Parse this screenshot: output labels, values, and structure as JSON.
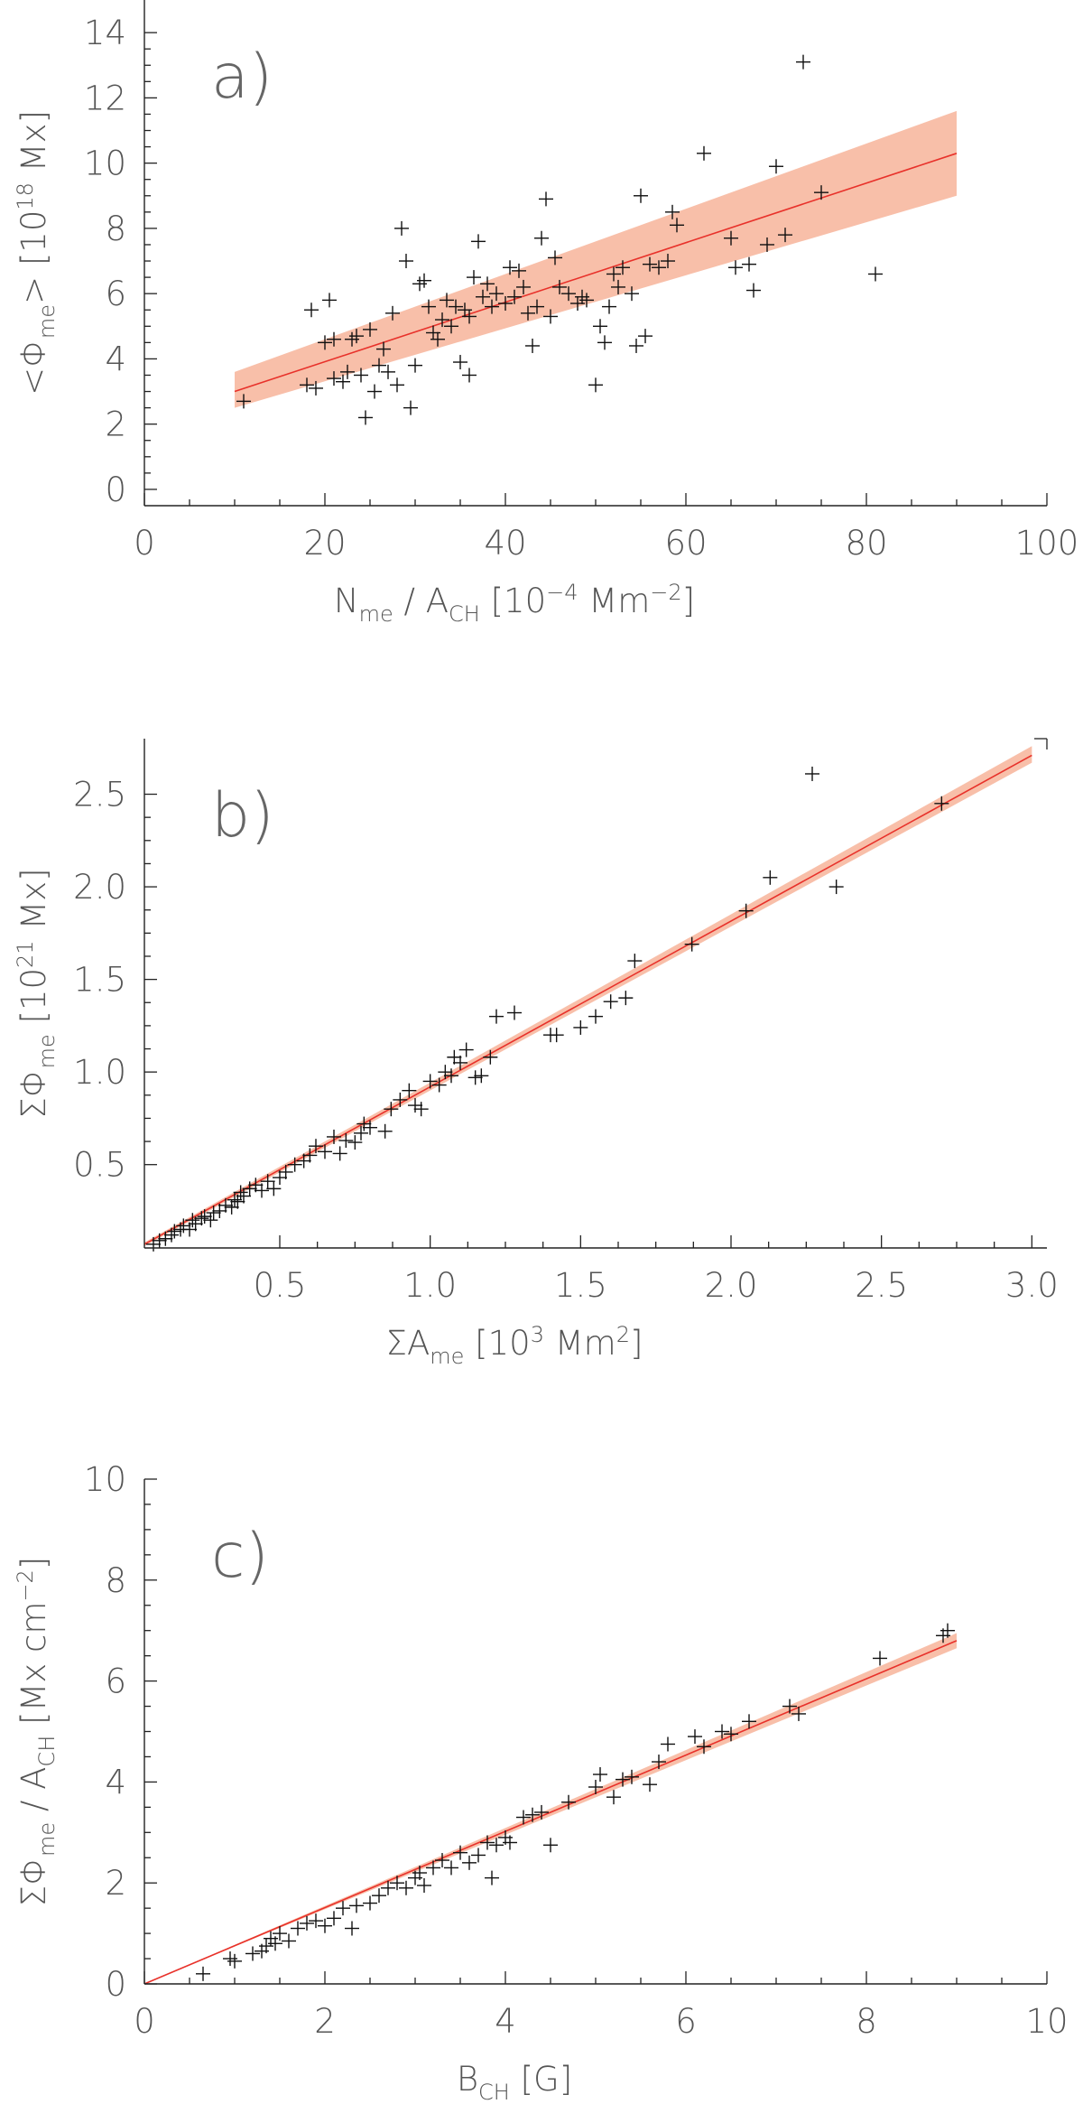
{
  "chart_data": [
    {
      "id": "a",
      "type": "scatter",
      "panel_label": "a)",
      "xlabel": "N_me / A_CH [10^-4 Mm^-2]",
      "ylabel": "<Φ_me> [10^18 Mx]",
      "xlim": [
        0,
        100
      ],
      "ylim": [
        -0.5,
        15
      ],
      "xticks": [
        0,
        20,
        40,
        60,
        80,
        100
      ],
      "yticks": [
        0,
        2,
        4,
        6,
        8,
        10,
        12,
        14
      ],
      "fit": {
        "x": [
          10,
          90
        ],
        "y": [
          3.0,
          10.3
        ]
      },
      "band": {
        "x": [
          10,
          90
        ],
        "lower": [
          2.5,
          9.0
        ],
        "upper": [
          3.6,
          11.6
        ]
      },
      "points": [
        [
          11,
          2.7
        ],
        [
          18,
          3.2
        ],
        [
          18.5,
          5.5
        ],
        [
          19,
          3.1
        ],
        [
          20,
          4.5
        ],
        [
          20.5,
          5.8
        ],
        [
          21,
          3.4
        ],
        [
          21,
          4.6
        ],
        [
          22,
          3.3
        ],
        [
          22.5,
          3.6
        ],
        [
          23,
          4.6
        ],
        [
          23.5,
          4.7
        ],
        [
          24,
          3.5
        ],
        [
          24.5,
          2.2
        ],
        [
          25,
          4.9
        ],
        [
          25.5,
          3.0
        ],
        [
          26,
          3.8
        ],
        [
          26.5,
          4.3
        ],
        [
          27,
          3.6
        ],
        [
          27.5,
          5.4
        ],
        [
          28,
          3.2
        ],
        [
          28.5,
          8.0
        ],
        [
          29,
          7.0
        ],
        [
          29.5,
          2.5
        ],
        [
          30,
          3.8
        ],
        [
          30.5,
          6.3
        ],
        [
          31,
          6.4
        ],
        [
          31.5,
          5.6
        ],
        [
          32,
          4.8
        ],
        [
          32.5,
          4.6
        ],
        [
          33,
          5.2
        ],
        [
          33.5,
          5.8
        ],
        [
          34,
          5.0
        ],
        [
          34.5,
          5.6
        ],
        [
          35,
          3.9
        ],
        [
          35.5,
          5.5
        ],
        [
          36,
          3.5
        ],
        [
          36,
          5.3
        ],
        [
          36.5,
          6.5
        ],
        [
          37,
          7.6
        ],
        [
          37.5,
          5.9
        ],
        [
          38,
          6.3
        ],
        [
          38.5,
          5.6
        ],
        [
          39,
          6.0
        ],
        [
          40,
          5.7
        ],
        [
          40.5,
          6.8
        ],
        [
          41,
          5.9
        ],
        [
          41.5,
          6.7
        ],
        [
          42,
          6.2
        ],
        [
          42.5,
          5.4
        ],
        [
          43,
          4.4
        ],
        [
          43.5,
          5.6
        ],
        [
          44,
          7.7
        ],
        [
          44.5,
          8.9
        ],
        [
          45,
          5.3
        ],
        [
          45.5,
          7.1
        ],
        [
          46,
          6.2
        ],
        [
          47,
          6.0
        ],
        [
          48,
          5.7
        ],
        [
          48.5,
          5.9
        ],
        [
          49,
          5.8
        ],
        [
          50,
          3.2
        ],
        [
          50.5,
          5.0
        ],
        [
          51,
          4.5
        ],
        [
          51.5,
          5.6
        ],
        [
          52,
          6.6
        ],
        [
          52.5,
          6.2
        ],
        [
          53,
          6.8
        ],
        [
          54,
          6.0
        ],
        [
          54.5,
          4.4
        ],
        [
          55,
          9.0
        ],
        [
          55.5,
          4.7
        ],
        [
          56,
          6.9
        ],
        [
          57,
          6.8
        ],
        [
          58,
          7.0
        ],
        [
          58.5,
          8.5
        ],
        [
          59,
          8.1
        ],
        [
          62,
          10.3
        ],
        [
          65,
          7.7
        ],
        [
          65.5,
          6.8
        ],
        [
          67,
          6.9
        ],
        [
          67.5,
          6.1
        ],
        [
          69,
          7.5
        ],
        [
          70,
          9.9
        ],
        [
          71,
          7.8
        ],
        [
          73,
          13.1
        ],
        [
          75,
          9.1
        ],
        [
          81,
          6.6
        ]
      ]
    },
    {
      "id": "b",
      "type": "scatter",
      "panel_label": "b)",
      "xlabel": "ΣA_me [10^3 Mm^2]",
      "ylabel": "ΣΦ_me [10^21 Mx]",
      "xlim": [
        0.05,
        3.05
      ],
      "ylim": [
        0.05,
        2.8
      ],
      "xticks": [
        0.5,
        1.0,
        1.5,
        2.0,
        2.5,
        3.0
      ],
      "xticklabels": [
        "0.5",
        "1.0",
        "1.5",
        "2.0",
        "2.5",
        "3.0"
      ],
      "yticks": [
        0.5,
        1.0,
        1.5,
        2.0,
        2.5
      ],
      "yticklabels": [
        "0.5",
        "1.0",
        "1.5",
        "2.0",
        "2.5"
      ],
      "fit": {
        "x": [
          0.05,
          3.0
        ],
        "y": [
          0.07,
          2.71
        ]
      },
      "band": {
        "x": [
          0.05,
          3.0
        ],
        "lower": [
          0.06,
          2.67
        ],
        "upper": [
          0.08,
          2.76
        ]
      },
      "points": [
        [
          0.08,
          0.07
        ],
        [
          0.1,
          0.09
        ],
        [
          0.12,
          0.1
        ],
        [
          0.14,
          0.12
        ],
        [
          0.15,
          0.14
        ],
        [
          0.17,
          0.15
        ],
        [
          0.18,
          0.17
        ],
        [
          0.2,
          0.15
        ],
        [
          0.21,
          0.2
        ],
        [
          0.22,
          0.18
        ],
        [
          0.24,
          0.21
        ],
        [
          0.25,
          0.22
        ],
        [
          0.27,
          0.2
        ],
        [
          0.28,
          0.24
        ],
        [
          0.3,
          0.25
        ],
        [
          0.32,
          0.28
        ],
        [
          0.34,
          0.27
        ],
        [
          0.35,
          0.31
        ],
        [
          0.36,
          0.3
        ],
        [
          0.37,
          0.35
        ],
        [
          0.38,
          0.33
        ],
        [
          0.4,
          0.37
        ],
        [
          0.42,
          0.39
        ],
        [
          0.44,
          0.36
        ],
        [
          0.46,
          0.41
        ],
        [
          0.48,
          0.37
        ],
        [
          0.5,
          0.43
        ],
        [
          0.52,
          0.46
        ],
        [
          0.55,
          0.5
        ],
        [
          0.58,
          0.52
        ],
        [
          0.6,
          0.55
        ],
        [
          0.62,
          0.6
        ],
        [
          0.65,
          0.57
        ],
        [
          0.68,
          0.65
        ],
        [
          0.7,
          0.56
        ],
        [
          0.72,
          0.63
        ],
        [
          0.75,
          0.62
        ],
        [
          0.77,
          0.67
        ],
        [
          0.78,
          0.72
        ],
        [
          0.8,
          0.7
        ],
        [
          0.85,
          0.68
        ],
        [
          0.87,
          0.8
        ],
        [
          0.9,
          0.85
        ],
        [
          0.93,
          0.9
        ],
        [
          0.95,
          0.82
        ],
        [
          0.97,
          0.8
        ],
        [
          1.0,
          0.95
        ],
        [
          1.03,
          0.93
        ],
        [
          1.05,
          1.0
        ],
        [
          1.07,
          0.98
        ],
        [
          1.08,
          1.08
        ],
        [
          1.1,
          1.05
        ],
        [
          1.12,
          1.12
        ],
        [
          1.15,
          0.97
        ],
        [
          1.17,
          0.98
        ],
        [
          1.2,
          1.08
        ],
        [
          1.22,
          1.3
        ],
        [
          1.28,
          1.32
        ],
        [
          1.4,
          1.2
        ],
        [
          1.42,
          1.2
        ],
        [
          1.5,
          1.24
        ],
        [
          1.55,
          1.3
        ],
        [
          1.6,
          1.38
        ],
        [
          1.65,
          1.4
        ],
        [
          1.68,
          1.6
        ],
        [
          1.87,
          1.69
        ],
        [
          2.05,
          1.87
        ],
        [
          2.13,
          2.05
        ],
        [
          2.27,
          2.61
        ],
        [
          2.35,
          2.0
        ],
        [
          2.7,
          2.45
        ]
      ]
    },
    {
      "id": "c",
      "type": "scatter",
      "panel_label": "c)",
      "xlabel": "B_CH [G]",
      "ylabel": "ΣΦ_me / A_CH [Mx cm^-2]",
      "xlim": [
        0,
        10
      ],
      "ylim": [
        0,
        10
      ],
      "xticks": [
        0,
        2,
        4,
        6,
        8,
        10
      ],
      "yticks": [
        0,
        2,
        4,
        6,
        8,
        10
      ],
      "fit": {
        "x": [
          0,
          9.0
        ],
        "y": [
          0.0,
          6.8
        ]
      },
      "band": {
        "x": [
          0,
          9.0
        ],
        "lower": [
          0.0,
          6.65
        ],
        "upper": [
          0.0,
          6.95
        ]
      },
      "points": [
        [
          0.65,
          0.2
        ],
        [
          0.95,
          0.5
        ],
        [
          1.0,
          0.45
        ],
        [
          1.2,
          0.6
        ],
        [
          1.3,
          0.65
        ],
        [
          1.35,
          0.75
        ],
        [
          1.4,
          0.9
        ],
        [
          1.45,
          0.8
        ],
        [
          1.5,
          1.0
        ],
        [
          1.6,
          0.85
        ],
        [
          1.7,
          1.1
        ],
        [
          1.8,
          1.2
        ],
        [
          1.9,
          1.25
        ],
        [
          2.0,
          1.15
        ],
        [
          2.1,
          1.3
        ],
        [
          2.2,
          1.5
        ],
        [
          2.3,
          1.1
        ],
        [
          2.35,
          1.55
        ],
        [
          2.5,
          1.6
        ],
        [
          2.6,
          1.75
        ],
        [
          2.7,
          1.9
        ],
        [
          2.8,
          2.0
        ],
        [
          2.9,
          1.9
        ],
        [
          3.0,
          2.1
        ],
        [
          3.05,
          2.2
        ],
        [
          3.1,
          1.95
        ],
        [
          3.2,
          2.3
        ],
        [
          3.3,
          2.45
        ],
        [
          3.4,
          2.3
        ],
        [
          3.5,
          2.6
        ],
        [
          3.6,
          2.4
        ],
        [
          3.7,
          2.55
        ],
        [
          3.8,
          2.8
        ],
        [
          3.85,
          2.1
        ],
        [
          3.9,
          2.75
        ],
        [
          4.0,
          2.9
        ],
        [
          4.05,
          2.8
        ],
        [
          4.2,
          3.3
        ],
        [
          4.3,
          3.35
        ],
        [
          4.4,
          3.4
        ],
        [
          4.5,
          2.75
        ],
        [
          4.7,
          3.6
        ],
        [
          5.0,
          3.9
        ],
        [
          5.05,
          4.15
        ],
        [
          5.2,
          3.7
        ],
        [
          5.3,
          4.05
        ],
        [
          5.4,
          4.1
        ],
        [
          5.6,
          3.95
        ],
        [
          5.7,
          4.4
        ],
        [
          5.8,
          4.75
        ],
        [
          6.1,
          4.9
        ],
        [
          6.2,
          4.7
        ],
        [
          6.4,
          5.0
        ],
        [
          6.5,
          4.95
        ],
        [
          6.7,
          5.2
        ],
        [
          7.15,
          5.5
        ],
        [
          7.25,
          5.35
        ],
        [
          8.15,
          6.45
        ],
        [
          8.85,
          6.9
        ],
        [
          8.9,
          7.0
        ]
      ]
    }
  ]
}
